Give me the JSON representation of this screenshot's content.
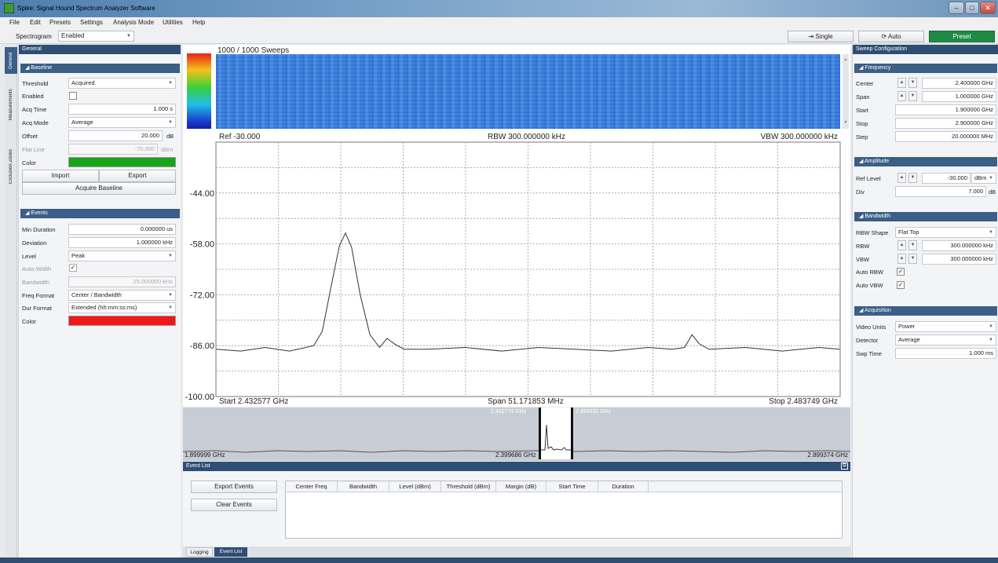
{
  "window": {
    "title": "Spike: Signal Hound Spectrum Analyzer Software",
    "buttons": [
      "–",
      "□",
      "✕"
    ]
  },
  "menu": [
    "File",
    "Edit",
    "Presets",
    "Settings",
    "Analysis Mode",
    "Utilities",
    "Help"
  ],
  "toolbar": {
    "spectrogram_label": "Spectrogram",
    "spectrogram_value": "Enabled",
    "single_label": "Single",
    "auto_label": "Auto",
    "preset_label": "Preset"
  },
  "vertical_tabs": [
    "General",
    "Measurements",
    "Exclusion Zones"
  ],
  "left_panel": {
    "title": "General",
    "baseline": {
      "header": "Baseline",
      "rows": [
        {
          "label": "Threshold",
          "value": "Acquired"
        },
        {
          "label": "Enabled",
          "value": ""
        },
        {
          "label": "Acq Time",
          "value": "1.000 s"
        },
        {
          "label": "Acq Mode",
          "value": "Average"
        },
        {
          "label": "Offset",
          "value": "20.000",
          "unit": "dB"
        },
        {
          "label": "Flat Line",
          "value": "-70.000",
          "unit": "dBm"
        },
        {
          "label": "Color",
          "value": ""
        }
      ],
      "color": "#19a319",
      "import_label": "Import",
      "export_label": "Export",
      "acquire_label": "Acquire Baseline"
    },
    "events": {
      "header": "Events",
      "rows": [
        {
          "label": "Min Duration",
          "value": "0.000000 us"
        },
        {
          "label": "Deviation",
          "value": "1.000000 kHz"
        },
        {
          "label": "Level",
          "value": "Peak"
        },
        {
          "label": "Auto-Width",
          "value": "✓"
        },
        {
          "label": "Bandwidth",
          "value": "25.000000 kHz"
        },
        {
          "label": "Freq Format",
          "value": "Center / Bandwidth"
        },
        {
          "label": "Dur Format",
          "value": "Extended (hh:mm:ss:ms)"
        },
        {
          "label": "Color",
          "value": ""
        }
      ],
      "color": "#f01818"
    }
  },
  "spectrogram": {
    "sweeps": "1000 / 1000 Sweeps"
  },
  "chart_header": {
    "ref": "Ref -30.000",
    "rbw": "RBW 300.000000 kHz",
    "vbw": "VBW 300.000000 kHz"
  },
  "chart_footer": {
    "start": "Start 2.432577 GHz",
    "span": "Span 51.171853 MHz",
    "stop": "Stop 2.483749 GHz"
  },
  "chart_data": {
    "type": "line",
    "xlim": [
      2.432577,
      2.483749
    ],
    "ylim": [
      -100,
      -30
    ],
    "y_ticks": [
      "-44.00",
      "-58.00",
      "-72.00",
      "-86.00",
      "-100.00"
    ],
    "grid": true,
    "series": [
      {
        "x": [
          2.4326,
          2.4346,
          2.4366,
          2.4386,
          2.4406,
          2.4413,
          2.442,
          2.4427,
          2.4432,
          2.4437,
          2.4444,
          2.4452,
          2.446,
          2.4466,
          2.4472,
          2.448,
          2.45,
          2.453,
          2.456,
          2.459,
          2.462,
          2.465,
          2.468,
          2.47,
          2.471,
          2.4716,
          2.4722,
          2.473,
          2.476,
          2.479,
          2.482,
          2.4837
        ],
        "y": [
          -87.0,
          -87.5,
          -86.5,
          -87.5,
          -86.0,
          -82.0,
          -70.0,
          -58.5,
          -55.0,
          -59.0,
          -72.0,
          -83.0,
          -86.5,
          -84.0,
          -85.5,
          -87.0,
          -87.0,
          -86.5,
          -87.5,
          -86.5,
          -87.0,
          -87.5,
          -86.5,
          -87.0,
          -86.5,
          -83.0,
          -85.5,
          -87.0,
          -86.5,
          -87.5,
          -86.5,
          -87.0
        ]
      }
    ]
  },
  "overview": {
    "left_freq": "1.899999 GHz",
    "center_freq": "2.399686 GHz",
    "right_freq": "2.899374 GHz",
    "win_start": "2.432774 GHz",
    "win_stop": "2.484032 GHz"
  },
  "event_list": {
    "title": "Event List",
    "export_label": "Export Events",
    "clear_label": "Clear Events",
    "columns": [
      "Center Freq",
      "Bandwidth",
      "Level (dBm)",
      "Threshold (dBm)",
      "Margin (dB)",
      "Start Time",
      "Duration"
    ]
  },
  "bottom_tabs": [
    "Logging",
    "Event List"
  ],
  "right_panel": {
    "title": "Sweep Configuration",
    "frequency": {
      "header": "Frequency",
      "rows": [
        {
          "label": "Center",
          "value": "2.400000 GHz"
        },
        {
          "label": "Span",
          "value": "1.000000 GHz"
        },
        {
          "label": "Start",
          "value": "1.900000 GHz"
        },
        {
          "label": "Stop",
          "value": "2.900000 GHz"
        },
        {
          "label": "Step",
          "value": "20.000000 MHz"
        }
      ]
    },
    "amplitude": {
      "header": "Amplitude",
      "ref_label": "Ref Level",
      "ref_value": "-30.000",
      "ref_unit": "dBm",
      "div_label": "Div",
      "div_value": "7.000",
      "div_unit": "dB"
    },
    "bandwidth": {
      "header": "Bandwidth",
      "rbw_shape_label": "RBW Shape",
      "rbw_shape_value": "Flat Top",
      "rbw_label": "RBW",
      "rbw_value": "300.000000 kHz",
      "vbw_label": "VBW",
      "vbw_value": "300.000000 kHz",
      "auto_rbw_label": "Auto RBW",
      "auto_vbw_label": "Auto VBW"
    },
    "acquisition": {
      "header": "Acquisition",
      "video_units_label": "Video Units",
      "video_units_value": "Power",
      "detector_label": "Detector",
      "detector_value": "Average",
      "swp_time_label": "Swp Time",
      "swp_time_value": "1.000 ms"
    }
  }
}
